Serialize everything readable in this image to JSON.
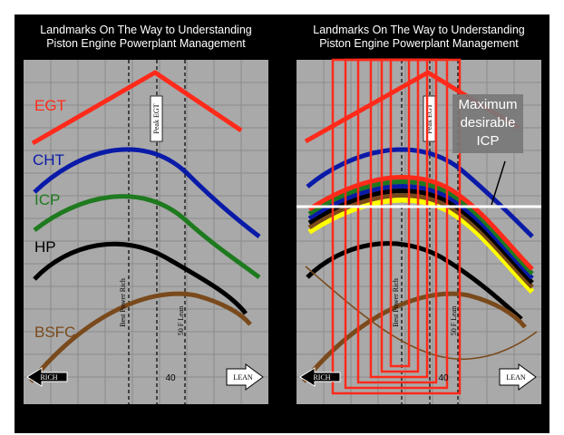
{
  "slide": {
    "background": "#000000",
    "grid_background": "#a9a9a9",
    "panels": [
      {
        "id": "left",
        "title_line1": "Landmarks On The Way to Understanding",
        "title_line2": "Piston Engine Powerplant Management",
        "labels": {
          "egt": "EGT",
          "cht": "CHT",
          "icp": "ICP",
          "hp": "HP",
          "bsfc": "BSFC"
        },
        "markers": {
          "peak_egt": "Peak EGT",
          "best_power_rich": "Best Power Rich",
          "lean_side": "50 F Lean"
        },
        "x_axis": {
          "rich": "RICH",
          "lean": "LEAN",
          "value": "40"
        }
      },
      {
        "id": "right",
        "title_line1": "Landmarks On The Way to Understanding",
        "title_line2": "Piston Engine Powerplant Management",
        "markers": {
          "peak_egt": "Peak EGT",
          "best_power_rich": "Best Power Rich",
          "lean_side": "50 F Lean"
        },
        "x_axis": {
          "rich": "RICH",
          "lean": "LEAN",
          "value": "40"
        },
        "callout_line1": "Maximum",
        "callout_line2": "desirable",
        "callout_line3": "ICP"
      }
    ],
    "colors": {
      "egt": "#ff2a1a",
      "cht": "#0a1aa8",
      "icp": "#1e7a1e",
      "hp": "#000000",
      "bsfc": "#7a4a1c",
      "yellow": "#ffff00",
      "box_red": "#ff2a1a",
      "max_line": "#ffffff"
    }
  }
}
